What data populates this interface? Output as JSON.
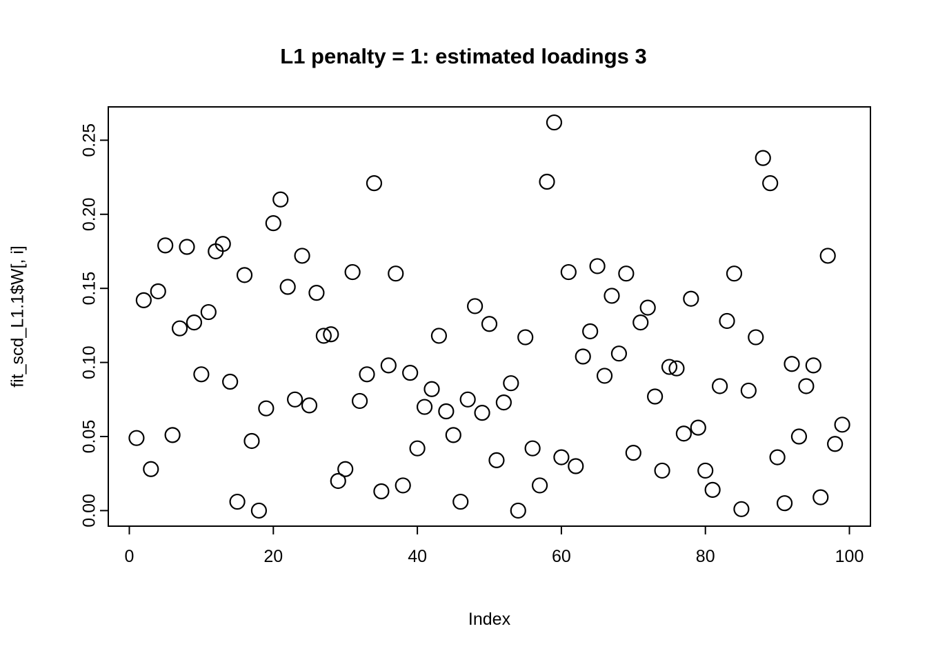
{
  "chart_data": {
    "type": "scatter",
    "title": "L1 penalty = 1: estimated loadings 3",
    "xlabel": "Index",
    "ylabel": "fit_scd_L1.1$W[, i]",
    "point_style": "open-circle",
    "point_color": "#000000",
    "background_color": "#ffffff",
    "grid": false,
    "legend": false,
    "xlim": [
      -2.92,
      102.92
    ],
    "ylim": [
      -0.0105,
      0.2725
    ],
    "x_ticks": [
      0,
      20,
      40,
      60,
      80,
      100
    ],
    "y_ticks": [
      "0.00",
      "0.05",
      "0.10",
      "0.15",
      "0.20",
      "0.25"
    ],
    "x": [
      1,
      2,
      3,
      4,
      5,
      6,
      7,
      8,
      9,
      10,
      11,
      12,
      13,
      14,
      15,
      16,
      17,
      18,
      19,
      20,
      21,
      22,
      23,
      24,
      25,
      26,
      27,
      28,
      29,
      30,
      31,
      32,
      33,
      34,
      35,
      36,
      37,
      38,
      39,
      40,
      41,
      42,
      43,
      44,
      45,
      46,
      47,
      48,
      49,
      50,
      51,
      52,
      53,
      54,
      55,
      56,
      57,
      58,
      59,
      60,
      61,
      62,
      63,
      64,
      65,
      66,
      67,
      68,
      69,
      70,
      71,
      72,
      73,
      74,
      75,
      76,
      77,
      78,
      79,
      80,
      81,
      82,
      83,
      84,
      85,
      86,
      87,
      88,
      89,
      90,
      91,
      92,
      93,
      94,
      95,
      96,
      97,
      98,
      99
    ],
    "y": [
      0.049,
      0.142,
      0.028,
      0.148,
      0.179,
      0.051,
      0.123,
      0.178,
      0.127,
      0.092,
      0.134,
      0.175,
      0.18,
      0.087,
      0.006,
      0.159,
      0.047,
      0.0,
      0.069,
      0.194,
      0.21,
      0.151,
      0.075,
      0.172,
      0.071,
      0.147,
      0.118,
      0.119,
      0.02,
      0.028,
      0.161,
      0.074,
      0.092,
      0.221,
      0.013,
      0.098,
      0.16,
      0.017,
      0.093,
      0.042,
      0.07,
      0.082,
      0.118,
      0.067,
      0.051,
      0.006,
      0.075,
      0.138,
      0.066,
      0.126,
      0.034,
      0.073,
      0.086,
      0.0,
      0.117,
      0.042,
      0.017,
      0.222,
      0.262,
      0.036,
      0.161,
      0.03,
      0.104,
      0.121,
      0.165,
      0.091,
      0.145,
      0.106,
      0.16,
      0.039,
      0.127,
      0.137,
      0.077,
      0.027,
      0.097,
      0.096,
      0.052,
      0.143,
      0.056,
      0.027,
      0.014,
      0.084,
      0.128,
      0.16,
      0.001,
      0.081,
      0.117,
      0.238,
      0.221,
      0.036,
      0.005,
      0.099,
      0.05,
      0.084,
      0.098,
      0.009,
      0.172,
      0.045,
      0.058
    ]
  }
}
